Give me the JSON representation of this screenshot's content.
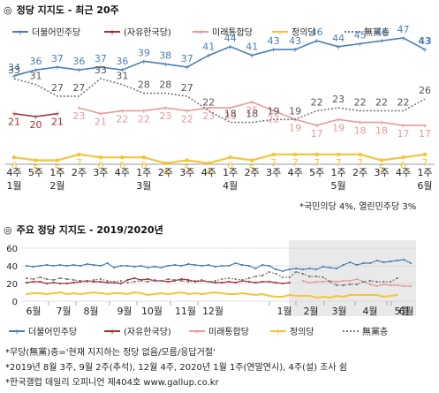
{
  "main": {
    "title": "정당 지지도 - 최근 20주",
    "marker": "◎",
    "note": "*국민의당 4%, 열린민주당 3%"
  },
  "sub": {
    "title": "주요 정당 지지도 - 2019/2020년",
    "marker": "◎"
  },
  "footnotes": [
    "*무당(無黨)층='현재 지지하는 정당 없음/모름/응답거절'",
    "*2019년 8월 3주, 9월 2주(추석), 12월 4주, 2020년 1월 1주(연말연시), 4주(설) 조사 쉼",
    "*한국갤럽 데일리 오피니언 제404호 www.gallup.co.kr"
  ],
  "chart_data": [
    {
      "type": "line",
      "categories": [
        [
          "4주",
          "1월"
        ],
        [
          "5주"
        ],
        [
          "1주",
          "2월"
        ],
        [
          "2주"
        ],
        [
          "3주"
        ],
        [
          "4주"
        ],
        [
          "1주",
          "3월"
        ],
        [
          "2주"
        ],
        [
          "3주"
        ],
        [
          "4주"
        ],
        [
          "1주",
          "4월"
        ],
        [
          "2주"
        ],
        [
          "3주"
        ],
        [
          "4주"
        ],
        [
          "5주"
        ],
        [
          "1주",
          "5월"
        ],
        [
          "2주"
        ],
        [
          "3주"
        ],
        [
          "4주"
        ],
        [
          "1주",
          "6월"
        ]
      ],
      "ylim": [
        0,
        50
      ],
      "legend_position": "top",
      "series": [
        {
          "name": "더불어민주당",
          "color": "#4a7eb5",
          "style": "solid",
          "values": [
            34,
            36,
            37,
            36,
            37,
            36,
            39,
            38,
            37,
            41,
            44,
            41,
            43,
            43,
            46,
            44,
            45,
            46,
            47,
            43
          ]
        },
        {
          "name": "(자유한국당)",
          "color": "#a33232",
          "style": "solid",
          "values": [
            21,
            20,
            21,
            null,
            null,
            null,
            null,
            null,
            null,
            null,
            null,
            null,
            null,
            null,
            null,
            null,
            null,
            null,
            null,
            null
          ]
        },
        {
          "name": "미래통합당",
          "color": "#e79a9a",
          "style": "solid",
          "values": [
            null,
            null,
            null,
            23,
            21,
            22,
            22,
            23,
            22,
            23,
            23,
            25,
            22,
            19,
            17,
            19,
            18,
            18,
            17,
            17
          ]
        },
        {
          "name": "정의당",
          "color": "#f5c43a",
          "style": "solid",
          "values": [
            6,
            5,
            5,
            7,
            6,
            6,
            6,
            4,
            5,
            4,
            6,
            5,
            7,
            7,
            7,
            7,
            7,
            5,
            6,
            7
          ]
        },
        {
          "name": "無黨층",
          "color": "#777777",
          "style": "dotted",
          "values": [
            33,
            31,
            27,
            27,
            33,
            31,
            28,
            28,
            27,
            22,
            18,
            18,
            19,
            19,
            22,
            23,
            22,
            22,
            22,
            26
          ]
        }
      ]
    },
    {
      "type": "line",
      "xlabels": [
        "6월",
        "7월",
        "8월",
        "9월",
        "10월",
        "11월",
        "12월",
        "1월",
        "2월",
        "3월",
        "4월",
        "5월",
        "6월"
      ],
      "yticks": [
        0,
        20,
        40,
        60
      ],
      "ylim": [
        0,
        60
      ],
      "highlight_range": [
        "2월",
        "6월"
      ],
      "series": [
        {
          "name": "더불어민주당",
          "color": "#4a7eb5",
          "values": [
            40,
            39,
            40,
            41,
            40,
            41,
            40,
            41,
            40,
            42,
            41,
            40,
            43,
            38,
            40,
            40,
            39,
            40,
            38,
            39,
            38,
            40,
            41,
            40,
            42,
            41,
            40,
            41,
            39,
            40,
            40,
            43,
            41,
            40,
            37,
            41,
            40,
            36,
            34,
            36,
            37,
            36,
            37,
            36,
            39,
            38,
            37,
            41,
            44,
            41,
            43,
            43,
            46,
            44,
            45,
            46,
            47,
            43
          ]
        },
        {
          "name": "(자유한국당)",
          "color": "#a33232",
          "values": [
            21,
            22,
            22,
            20,
            21,
            20,
            20,
            21,
            22,
            23,
            22,
            22,
            21,
            21,
            20,
            24,
            26,
            24,
            25,
            23,
            23,
            22,
            23,
            25,
            24,
            22,
            23,
            22,
            21,
            21,
            22,
            21,
            23,
            22,
            21,
            22,
            22,
            21,
            20,
            21
          ]
        },
        {
          "name": "미래통합당",
          "color": "#e79a9a",
          "values": [
            23,
            21,
            22,
            22,
            23,
            22,
            23,
            23,
            25,
            22,
            19,
            17,
            19,
            18,
            18,
            17,
            17
          ]
        },
        {
          "name": "정의당",
          "color": "#f5c43a",
          "values": [
            8,
            9,
            9,
            8,
            9,
            10,
            8,
            9,
            8,
            9,
            10,
            9,
            8,
            9,
            9,
            8,
            10,
            9,
            7,
            8,
            9,
            8,
            9,
            10,
            8,
            9,
            8,
            9,
            10,
            9,
            8,
            8,
            9,
            8,
            7,
            8,
            6,
            5,
            5,
            7,
            6,
            6,
            6,
            4,
            5,
            4,
            6,
            5,
            7,
            7,
            7,
            7,
            7,
            5,
            6,
            7
          ]
        },
        {
          "name": "無黨층",
          "color": "#777777",
          "values": [
            26,
            25,
            27,
            25,
            24,
            26,
            25,
            24,
            23,
            22,
            24,
            25,
            23,
            22,
            23,
            21,
            22,
            23,
            22,
            24,
            23,
            25,
            24,
            23,
            22,
            23,
            24,
            22,
            23,
            25,
            26,
            25,
            24,
            26,
            28,
            29,
            33,
            31,
            27,
            27,
            33,
            31,
            28,
            28,
            27,
            22,
            18,
            18,
            19,
            19,
            22,
            23,
            22,
            22,
            22,
            26
          ]
        }
      ]
    }
  ]
}
